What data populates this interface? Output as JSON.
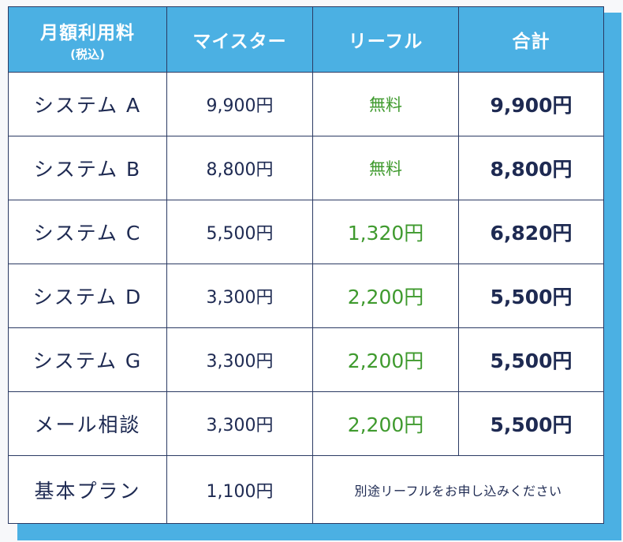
{
  "header": {
    "col0_label": "月額利用料",
    "col0_sub": "(税込)",
    "col1_label": "マイスター",
    "col2_label": "リーフル",
    "col3_label": "合計"
  },
  "rows": [
    {
      "name": "システム A",
      "meister": "9,900円",
      "refill": "無料",
      "total": "9,900円"
    },
    {
      "name": "システム B",
      "meister": "8,800円",
      "refill": "無料",
      "total": "8,800円"
    },
    {
      "name": "システム C",
      "meister": "5,500円",
      "refill": "1,320円",
      "total": "6,820円"
    },
    {
      "name": "システム D",
      "meister": "3,300円",
      "refill": "2,200円",
      "total": "5,500円"
    },
    {
      "name": "システム G",
      "meister": "3,300円",
      "refill": "2,200円",
      "total": "5,500円"
    },
    {
      "name": "メール相談",
      "meister": "3,300円",
      "refill": "2,200円",
      "total": "5,500円"
    }
  ],
  "basic_plan": {
    "name": "基本プラン",
    "meister": "1,100円",
    "note": "別途リーフルをお申し込みください"
  },
  "colors": {
    "header_bg": "#4bb0e3",
    "text_navy": "#1e2a52",
    "refill_green": "#3f9a2e",
    "border": "#2b3a63"
  }
}
